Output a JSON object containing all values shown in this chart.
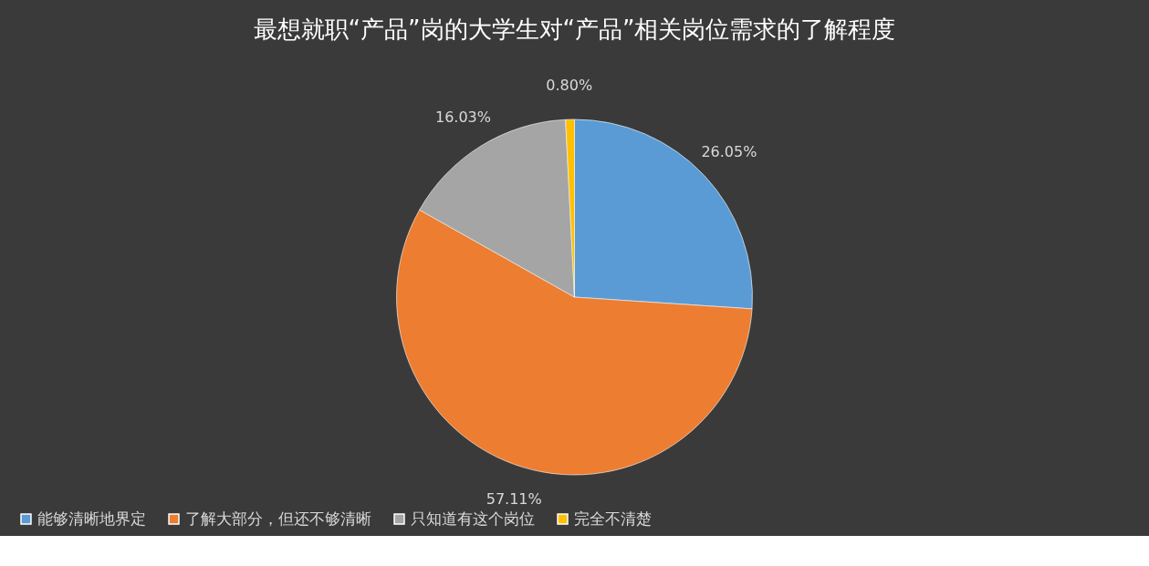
{
  "chart_data": {
    "type": "pie",
    "title": "最想就职“产品”岗的大学生对“产品”相关岗位需求的了解程度",
    "categories": [
      "能够清晰地界定",
      "了解大部分，但还不够清晰",
      "只知道有这个岗位",
      "完全不清楚"
    ],
    "values": [
      26.05,
      57.11,
      16.03,
      0.8
    ],
    "colors": [
      "#5b9bd5",
      "#ed7d31",
      "#a5a5a5",
      "#ffc000"
    ],
    "value_labels": [
      "26.05%",
      "57.11%",
      "16.03%",
      "0.80%"
    ],
    "legend": "bottom"
  }
}
